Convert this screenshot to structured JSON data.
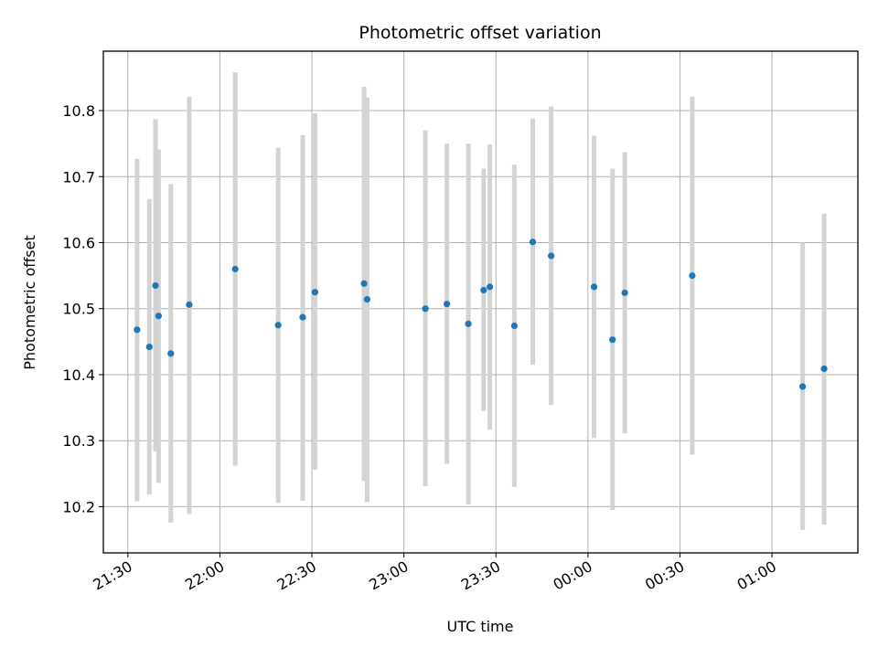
{
  "chart_data": {
    "type": "scatter",
    "title": "Photometric offset variation",
    "xlabel": "UTC time",
    "ylabel": "Photometric offset",
    "x_type": "time",
    "x_ticks": [
      "21:30",
      "22:00",
      "22:30",
      "23:00",
      "23:30",
      "00:00",
      "00:30",
      "01:00"
    ],
    "xlim": [
      "21:22",
      "25:28"
    ],
    "ylim": [
      10.13,
      10.89
    ],
    "y_ticks": [
      10.2,
      10.3,
      10.4,
      10.5,
      10.6,
      10.7,
      10.8
    ],
    "grid": true,
    "marker_color": "#1f77b4",
    "errorbar_color": "#d3d3d3",
    "points": [
      {
        "x": "21:33",
        "y": 10.468,
        "ylo": 10.208,
        "yhi": 10.727
      },
      {
        "x": "21:37",
        "y": 10.442,
        "ylo": 10.219,
        "yhi": 10.666
      },
      {
        "x": "21:39",
        "y": 10.535,
        "ylo": 10.284,
        "yhi": 10.787
      },
      {
        "x": "21:40",
        "y": 10.489,
        "ylo": 10.236,
        "yhi": 10.741
      },
      {
        "x": "21:44",
        "y": 10.432,
        "ylo": 10.176,
        "yhi": 10.689
      },
      {
        "x": "21:50",
        "y": 10.506,
        "ylo": 10.189,
        "yhi": 10.821
      },
      {
        "x": "22:05",
        "y": 10.56,
        "ylo": 10.262,
        "yhi": 10.858
      },
      {
        "x": "22:19",
        "y": 10.475,
        "ylo": 10.206,
        "yhi": 10.744
      },
      {
        "x": "22:27",
        "y": 10.487,
        "ylo": 10.209,
        "yhi": 10.763
      },
      {
        "x": "22:31",
        "y": 10.525,
        "ylo": 10.256,
        "yhi": 10.796
      },
      {
        "x": "22:47",
        "y": 10.538,
        "ylo": 10.239,
        "yhi": 10.836
      },
      {
        "x": "22:48",
        "y": 10.514,
        "ylo": 10.207,
        "yhi": 10.82
      },
      {
        "x": "23:07",
        "y": 10.5,
        "ylo": 10.231,
        "yhi": 10.77
      },
      {
        "x": "23:14",
        "y": 10.507,
        "ylo": 10.265,
        "yhi": 10.75
      },
      {
        "x": "23:21",
        "y": 10.477,
        "ylo": 10.203,
        "yhi": 10.75
      },
      {
        "x": "23:26",
        "y": 10.528,
        "ylo": 10.345,
        "yhi": 10.712
      },
      {
        "x": "23:28",
        "y": 10.533,
        "ylo": 10.317,
        "yhi": 10.749
      },
      {
        "x": "23:36",
        "y": 10.474,
        "ylo": 10.23,
        "yhi": 10.718
      },
      {
        "x": "23:42",
        "y": 10.601,
        "ylo": 10.415,
        "yhi": 10.788
      },
      {
        "x": "23:48",
        "y": 10.58,
        "ylo": 10.354,
        "yhi": 10.806
      },
      {
        "x": "00:02",
        "y": 10.533,
        "ylo": 10.304,
        "yhi": 10.762
      },
      {
        "x": "00:08",
        "y": 10.453,
        "ylo": 10.195,
        "yhi": 10.712
      },
      {
        "x": "00:12",
        "y": 10.524,
        "ylo": 10.311,
        "yhi": 10.737
      },
      {
        "x": "00:34",
        "y": 10.55,
        "ylo": 10.279,
        "yhi": 10.821
      },
      {
        "x": "01:10",
        "y": 10.382,
        "ylo": 10.165,
        "yhi": 10.6
      },
      {
        "x": "01:17",
        "y": 10.409,
        "ylo": 10.173,
        "yhi": 10.644
      }
    ]
  }
}
